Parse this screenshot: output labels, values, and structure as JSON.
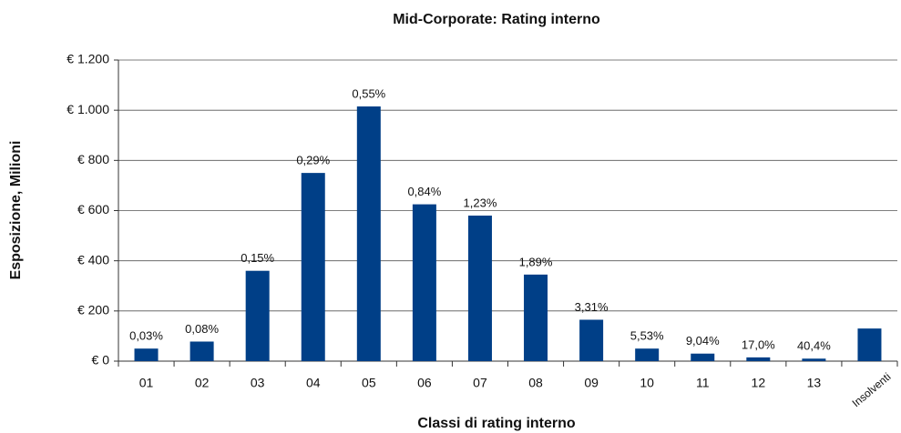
{
  "chart_data": {
    "type": "bar",
    "title": "Mid-Corporate: Rating interno",
    "x_label": "Classi di rating interno",
    "y_label": "Esposizione, Milioni",
    "categories": [
      "01",
      "02",
      "03",
      "04",
      "05",
      "06",
      "07",
      "08",
      "09",
      "10",
      "11",
      "12",
      "13",
      "Insolventi"
    ],
    "values": [
      50,
      78,
      360,
      750,
      1015,
      625,
      580,
      345,
      165,
      50,
      30,
      15,
      10,
      130
    ],
    "annotations": [
      "0,03%",
      "0,08%",
      "0,15%",
      "0,29%",
      "0,55%",
      "0,84%",
      "1,23%",
      "1,89%",
      "3,31%",
      "5,53%",
      "9,04%",
      "17,0%",
      "40,4%",
      null
    ],
    "color": "#003f87",
    "ylim": [
      0,
      1200
    ],
    "yticks": [
      {
        "value": 0,
        "label": "€ 0"
      },
      {
        "value": 200,
        "label": "€ 200"
      },
      {
        "value": 400,
        "label": "€ 400"
      },
      {
        "value": 600,
        "label": "€ 600"
      },
      {
        "value": 800,
        "label": "€ 800"
      },
      {
        "value": 1000,
        "label": "€ 1.000"
      },
      {
        "value": 1200,
        "label": "€ 1.200"
      }
    ],
    "grid": true
  }
}
